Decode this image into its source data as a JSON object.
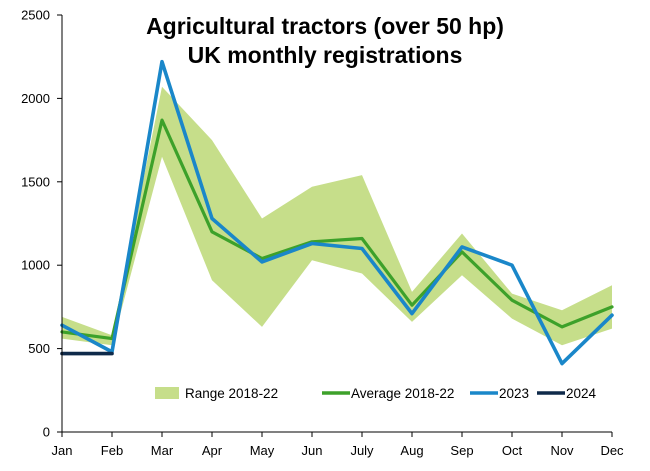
{
  "chart_data": {
    "type": "line",
    "title_line1": "Agricultural tractors (over 50 hp)",
    "title_line2": "UK monthly registrations",
    "xlabel": "",
    "ylabel": "",
    "categories": [
      "Jan",
      "Feb",
      "Mar",
      "Apr",
      "May",
      "Jun",
      "July",
      "Aug",
      "Sep",
      "Oct",
      "Nov",
      "Dec"
    ],
    "ylim": [
      0,
      2500
    ],
    "yticks": [
      0,
      500,
      1000,
      1500,
      2000,
      2500
    ],
    "grid": false,
    "legend_position": "bottom-inside",
    "range": {
      "name": "Range 2018-22",
      "color": "#c6de8a",
      "low": [
        560,
        520,
        1650,
        910,
        630,
        1030,
        950,
        660,
        940,
        680,
        520,
        620
      ],
      "high": [
        690,
        580,
        2070,
        1750,
        1280,
        1470,
        1540,
        840,
        1190,
        830,
        730,
        880
      ]
    },
    "series": [
      {
        "name": "Average 2018-22",
        "color": "#3da12a",
        "values": [
          600,
          560,
          1870,
          1200,
          1040,
          1140,
          1160,
          760,
          1080,
          790,
          630,
          750
        ]
      },
      {
        "name": "2023",
        "color": "#1a87c9",
        "values": [
          640,
          480,
          2220,
          1280,
          1020,
          1130,
          1100,
          710,
          1110,
          1000,
          410,
          700
        ]
      },
      {
        "name": "2024",
        "color": "#0f2a4a",
        "values": [
          470,
          470,
          null,
          null,
          null,
          null,
          null,
          null,
          null,
          null,
          null,
          null
        ]
      }
    ]
  }
}
